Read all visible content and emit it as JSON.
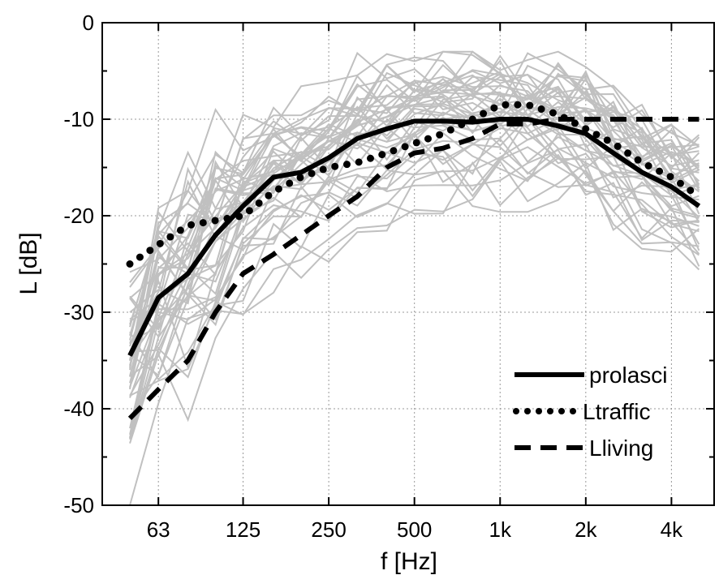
{
  "chart_data": {
    "type": "line",
    "xlabel": "f [Hz]",
    "ylabel": "L [dB]",
    "x_scale": "log",
    "x_ticks": [
      {
        "value": 63,
        "label": "63"
      },
      {
        "value": 125,
        "label": "125"
      },
      {
        "value": 250,
        "label": "250"
      },
      {
        "value": 500,
        "label": "500"
      },
      {
        "value": 1000,
        "label": "1k"
      },
      {
        "value": 2000,
        "label": "2k"
      },
      {
        "value": 4000,
        "label": "4k"
      }
    ],
    "y_ticks": [
      0,
      -10,
      -20,
      -30,
      -40,
      -50
    ],
    "ylim": [
      -50,
      0
    ],
    "xlim": [
      40,
      5650
    ],
    "grid": true,
    "legend": "bottom-right",
    "x": [
      50,
      63,
      80,
      100,
      125,
      160,
      200,
      250,
      315,
      400,
      500,
      630,
      800,
      1000,
      1250,
      1600,
      2000,
      2500,
      3150,
      4000,
      5000
    ],
    "series": [
      {
        "name": "prolasci",
        "style": "solid",
        "color": "#000000",
        "values": [
          -34.5,
          -28.5,
          -26,
          -22,
          -19,
          -16,
          -15.5,
          -14,
          -12,
          -11,
          -10.2,
          -10.2,
          -10.3,
          -10,
          -10,
          -10.7,
          -11.5,
          -13.5,
          -15.5,
          -17,
          -19
        ]
      },
      {
        "name": "Ltraffic",
        "style": "dotted",
        "color": "#000000",
        "values": [
          -25,
          -23,
          -21,
          -20.5,
          -20,
          -17.5,
          -16,
          -15,
          -14.5,
          -13.5,
          -12.5,
          -11.5,
          -10,
          -8.5,
          -8.5,
          -9.5,
          -11,
          -12.5,
          -14.5,
          -16,
          -18
        ]
      },
      {
        "name": "Lliving",
        "style": "dashed",
        "color": "#000000",
        "values": [
          -41,
          -38,
          -35,
          -30,
          -26,
          -24,
          -22,
          -20,
          -18,
          -15,
          -13.5,
          -13,
          -12,
          -10.5,
          -10.5,
          -10,
          -10,
          -10,
          -10,
          -10,
          -10
        ]
      }
    ],
    "background_series_count": 45,
    "background_series_color": "#c0c0c0"
  }
}
